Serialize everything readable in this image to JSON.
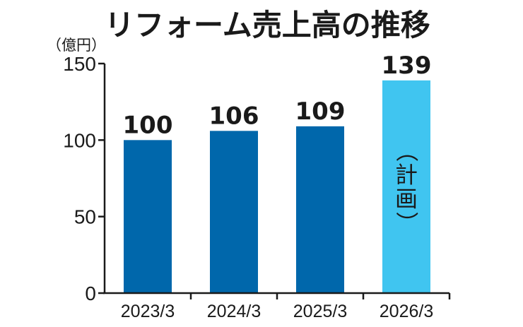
{
  "colors": {
    "actual": "#0067ab",
    "plan": "#40c5f0",
    "axis": "#1a1a1a"
  },
  "chart_data": {
    "type": "bar",
    "title": "リフォーム売上高の推移",
    "unit_label": "（億円）",
    "categories": [
      "2023/3",
      "2024/3",
      "2025/3",
      "2026/3"
    ],
    "values": [
      100,
      106,
      109,
      139
    ],
    "data_labels": [
      "100",
      "106",
      "109",
      "139"
    ],
    "bar_status": [
      "actual",
      "actual",
      "actual",
      "plan"
    ],
    "bar_note": "（計画）",
    "ylim": [
      0,
      150
    ],
    "yticks": [
      0,
      50,
      100,
      150
    ],
    "ytick_labels": [
      "0",
      "50",
      "100",
      "150"
    ],
    "grid": false,
    "xlabel": "",
    "ylabel": ""
  }
}
